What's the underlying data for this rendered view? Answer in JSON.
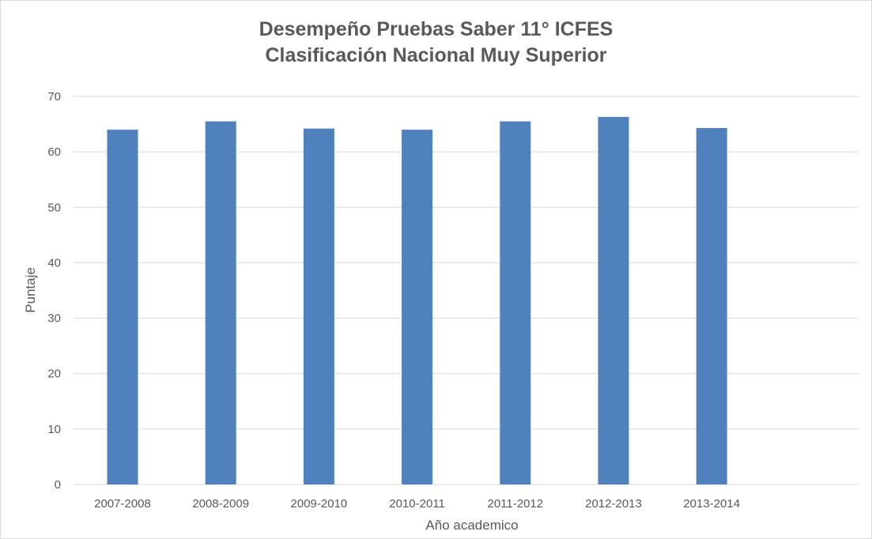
{
  "chart_data": {
    "type": "bar",
    "title": "Desempeño Pruebas Saber 11° ICFES",
    "subtitle": "Clasificación Nacional Muy Superior",
    "xlabel": "Año academico",
    "ylabel": "Puntaje",
    "categories": [
      "2007-2008",
      "2008-2009",
      "2009-2010",
      "2010-2011",
      "2011-2012",
      "2012-2013",
      "2013-2014"
    ],
    "values": [
      64.0,
      65.5,
      64.2,
      64.0,
      65.5,
      66.3,
      64.3
    ],
    "ylim": [
      0,
      70
    ],
    "yticks": [
      0,
      10,
      20,
      30,
      40,
      50,
      60,
      70
    ],
    "grid": true,
    "legend": "none",
    "bar_color": "#4f81bd",
    "grid_color": "#d9d9d9",
    "text_color": "#595959"
  }
}
